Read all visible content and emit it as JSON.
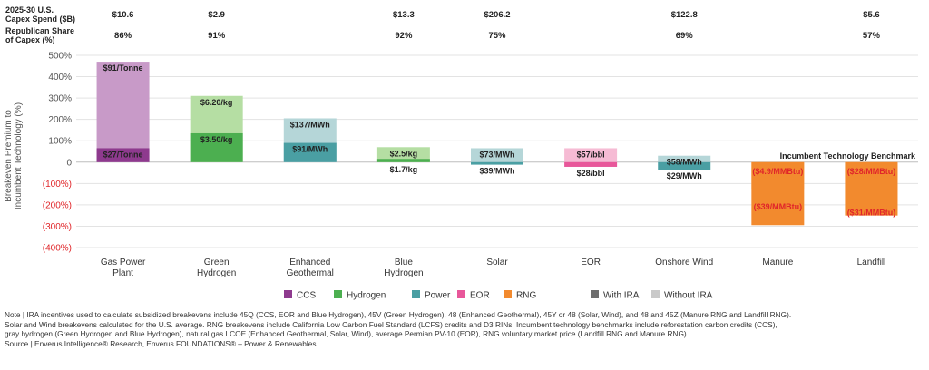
{
  "header": {
    "capex_label": [
      "2025-30 U.S.",
      "Capex Spend ($B)"
    ],
    "share_label": [
      "Republican Share",
      "of Capex (%)"
    ]
  },
  "chart_data": {
    "type": "bar",
    "ylabel": [
      "Breakeven Premium to",
      "Incumbent Technology (%)"
    ],
    "ylim": [
      -400,
      500
    ],
    "yticks": [
      500,
      400,
      300,
      200,
      100,
      0,
      -100,
      -200,
      -300,
      -400
    ],
    "ytick_labels": [
      "500%",
      "400%",
      "300%",
      "200%",
      "100%",
      "0",
      "(100%)",
      "(200%)",
      "(300%)",
      "(400%)"
    ],
    "benchmark_label": "Incumbent Technology Benchmark",
    "categories": [
      {
        "name": [
          "Gas Power",
          "Plant"
        ],
        "capex": "$10.6",
        "share": "86%",
        "type": "CCS",
        "with_ira": 65,
        "with_ira_label": "$27/Tonne",
        "without_ira": 470,
        "without_ira_label": "$91/Tonne"
      },
      {
        "name": [
          "Green",
          "Hydrogen"
        ],
        "capex": "$2.9",
        "share": "91%",
        "type": "Hydrogen",
        "with_ira": 135,
        "with_ira_label": "$3.50/kg",
        "without_ira": 310,
        "without_ira_label": "$6.20/kg"
      },
      {
        "name": [
          "Enhanced",
          "Geothermal"
        ],
        "capex": "",
        "share": "",
        "type": "Power",
        "with_ira": 90,
        "with_ira_label": "$91/MWh",
        "without_ira": 205,
        "without_ira_label": "$137/MWh"
      },
      {
        "name": [
          "Blue",
          "Hydrogen"
        ],
        "capex": "$13.3",
        "share": "92%",
        "type": "Hydrogen",
        "with_ira": 15,
        "with_ira_label": "$1.7/kg",
        "without_ira": 70,
        "without_ira_label": "$2.5/kg"
      },
      {
        "name": [
          "Solar"
        ],
        "capex": "$206.2",
        "share": "75%",
        "type": "Power",
        "with_ira": -12,
        "with_ira_label": "$39/MWh",
        "without_ira": 65,
        "without_ira_label": "$73/MWh"
      },
      {
        "name": [
          "EOR"
        ],
        "capex": "",
        "share": "",
        "type": "EOR",
        "with_ira": -22,
        "with_ira_label": "$28/bbl",
        "without_ira": 65,
        "without_ira_label": "$57/bbl"
      },
      {
        "name": [
          "Onshore Wind"
        ],
        "capex": "$122.8",
        "share": "69%",
        "type": "Power",
        "with_ira": -35,
        "with_ira_label": "$29/MWh",
        "without_ira": 30,
        "without_ira_label": "$58/MWh"
      },
      {
        "name": [
          "Manure"
        ],
        "capex": "",
        "share": "",
        "type": "RNG",
        "with_ira": -295,
        "with_ira_label": "($39/MMBtu)",
        "without_ira": -125,
        "without_ira_label": "($4.9/MMBtu)"
      },
      {
        "name": [
          "Landfill"
        ],
        "capex": "$5.6",
        "share": "57%",
        "type": "RNG",
        "with_ira": -250,
        "with_ira_label": "($31/MMBtu)",
        "without_ira": -240,
        "without_ira_label": "($28/MMBtu)"
      }
    ],
    "colors": {
      "CCS": {
        "with": "#8e3a8e",
        "without": "#c89ac8"
      },
      "Hydrogen": {
        "with": "#4caf50",
        "without": "#b5dea3"
      },
      "Power": {
        "with": "#4a9fa3",
        "without": "#b5d6d8"
      },
      "EOR": {
        "with": "#e8579a",
        "without": "#f6bbd4"
      },
      "RNG": {
        "with": "#f28a2e",
        "without": "#ffcf9e"
      },
      "with_ira": "#6d6d6d",
      "without_ira": "#c9c9c9",
      "negative_label": "#e0262a",
      "gridline": "#e3e3e3",
      "axis_text": "#555555"
    },
    "legend": [
      {
        "label": "CCS",
        "color": "#8e3a8e"
      },
      {
        "label": "Hydrogen",
        "color": "#4caf50"
      },
      {
        "label": "Power",
        "color": "#4a9fa3"
      },
      {
        "label": "EOR",
        "color": "#e8579a"
      },
      {
        "label": "RNG",
        "color": "#f28a2e"
      },
      {
        "label": "With IRA",
        "color": "#6d6d6d"
      },
      {
        "label": "Without IRA",
        "color": "#c9c9c9"
      }
    ]
  },
  "footnotes": [
    "Note | IRA incentives used to calculate subsidized breakevens include 45Q (CCS, EOR and Blue Hydrogen), 45V (Green Hydrogen), 48 (Enhanced Geothermal), 45Y or 48 (Solar, Wind), and 48 and 45Z (Manure RNG and Landfill RNG).",
    "Solar and Wind breakevens calculated for the U.S. average. RNG breakevens include California Low Carbon Fuel Standard (LCFS) credits and D3 RINs. Incumbent technology benchmarks include reforestation carbon credits (CCS),",
    "gray hydrogen (Green Hydrogen and Blue Hydrogen), natural gas LCOE (Enhanced Geothermal, Solar, Wind), average Permian PV-10 (EOR), RNG voluntary market price (Landfill RNG and Manure RNG).",
    "Source | Enverus Intelligence® Research, Enverus FOUNDATIONS® – Power & Renewables"
  ]
}
